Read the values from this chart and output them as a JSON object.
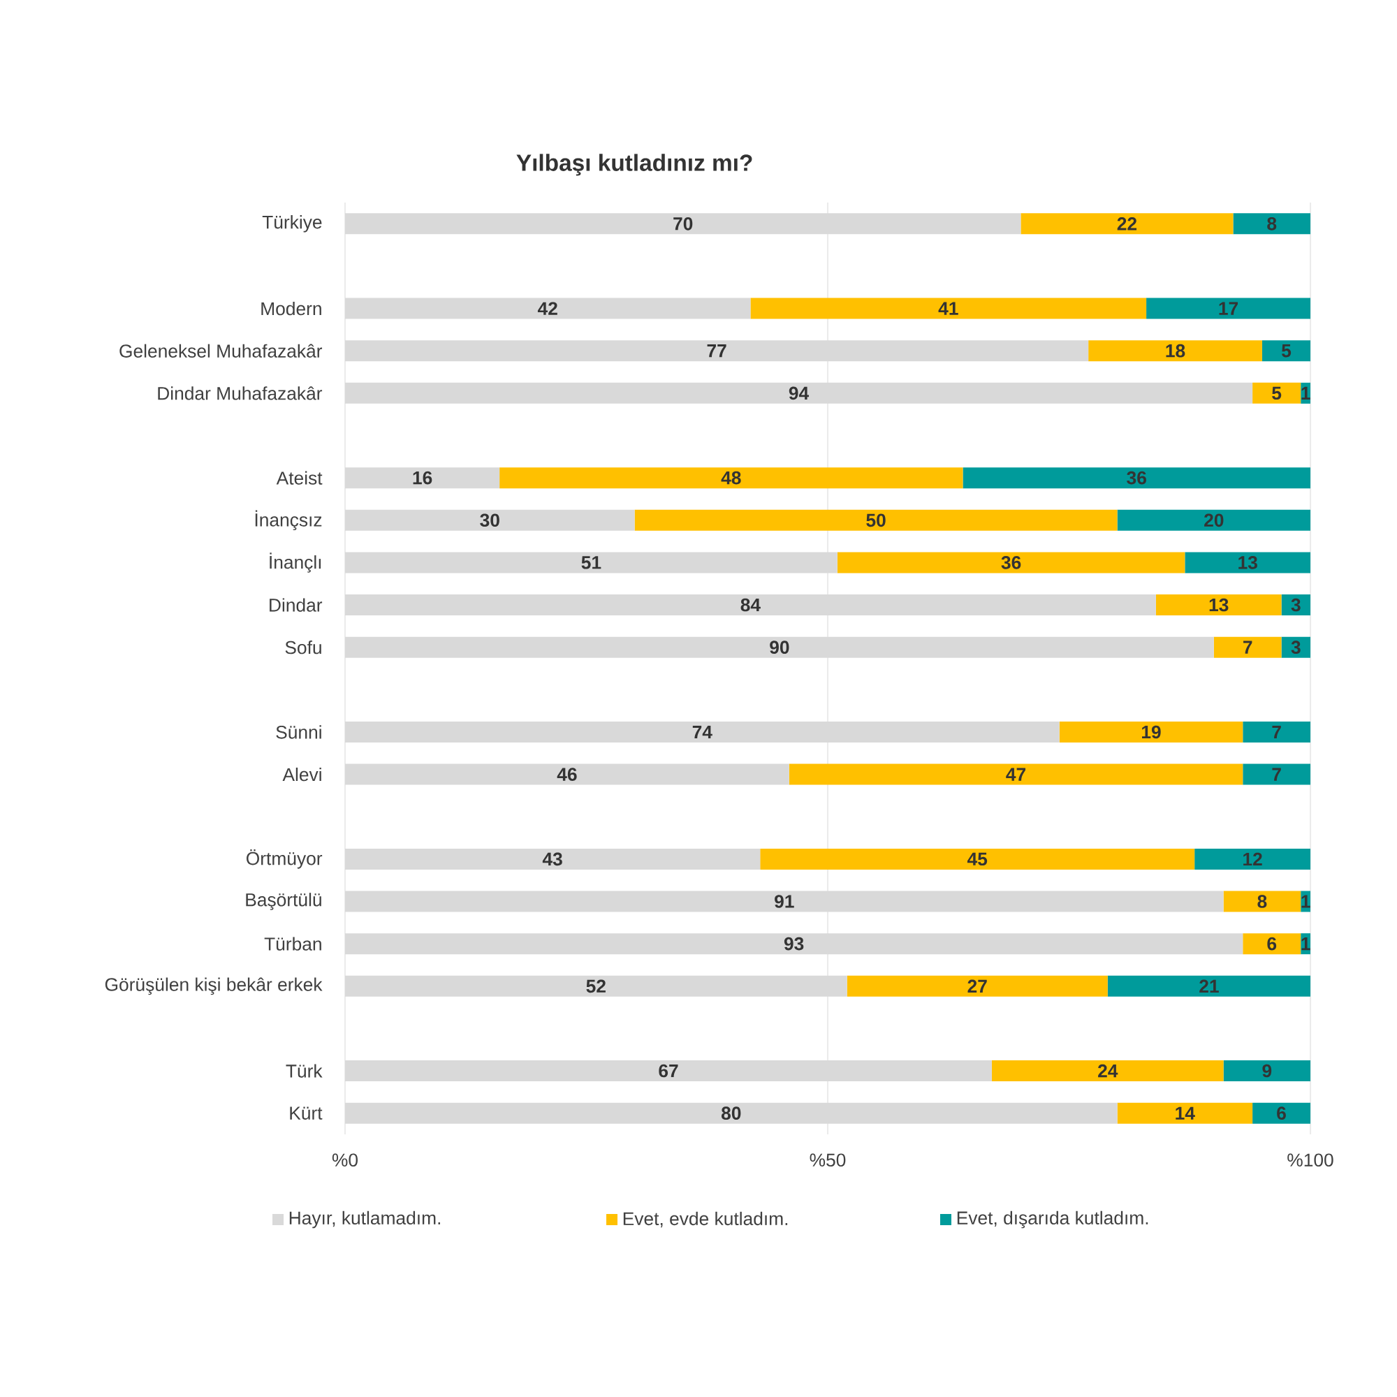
{
  "chart_data": {
    "type": "bar",
    "orientation": "horizontal",
    "stacked": true,
    "title": "Yılbaşı kutladınız mı?",
    "categories": [
      "Türkiye",
      null,
      "Modern",
      "Geleneksel Muhafazakâr",
      "Dindar Muhafazakâr",
      null,
      "Ateist",
      "İnançsız",
      "İnançlı",
      "Dindar",
      "Sofu",
      null,
      "Sünni",
      "Alevi",
      null,
      "Örtmüyor",
      "Başörtülü",
      "Türban",
      "Görüşülen kişi bekâr erkek",
      null,
      "Türk",
      "Kürt"
    ],
    "series": [
      {
        "name": "Hayır, kutlamadım.",
        "color": "#d9d9d9",
        "values": [
          70,
          null,
          42,
          77,
          94,
          null,
          16,
          30,
          51,
          84,
          90,
          null,
          74,
          46,
          null,
          43,
          91,
          93,
          52,
          null,
          67,
          80
        ]
      },
      {
        "name": "Evet, evde kutladım.",
        "color": "#ffc000",
        "values": [
          22,
          null,
          41,
          18,
          5,
          null,
          48,
          50,
          36,
          13,
          7,
          null,
          19,
          47,
          null,
          45,
          8,
          6,
          27,
          null,
          24,
          14
        ]
      },
      {
        "name": "Evet, dışarıda kutladım.",
        "color": "#009b9b",
        "values": [
          8,
          null,
          17,
          5,
          1,
          null,
          36,
          20,
          13,
          3,
          3,
          null,
          7,
          7,
          null,
          12,
          1,
          1,
          21,
          null,
          9,
          6
        ]
      }
    ],
    "xlim": [
      0,
      100
    ],
    "xticks": [
      {
        "value": 0,
        "label": "%0"
      },
      {
        "value": 50,
        "label": "%50"
      },
      {
        "value": 100,
        "label": "%100"
      }
    ],
    "grid": "x",
    "legend": "bottom",
    "data_labels": true
  }
}
